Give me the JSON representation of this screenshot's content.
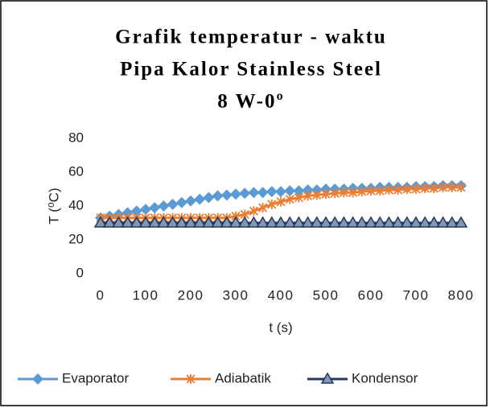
{
  "chart_data": {
    "type": "line",
    "title": [
      "Grafik temperatur - waktu",
      "Pipa Kalor Stainless Steel",
      "8 W-0º"
    ],
    "x_label": "t (s)",
    "y_label": "T (⁰C)",
    "x": [
      0,
      20,
      40,
      60,
      80,
      100,
      120,
      140,
      160,
      180,
      200,
      220,
      240,
      260,
      280,
      300,
      320,
      340,
      360,
      380,
      400,
      420,
      440,
      460,
      480,
      500,
      520,
      540,
      560,
      580,
      600,
      620,
      640,
      660,
      680,
      700,
      720,
      740,
      760,
      780,
      800
    ],
    "series": [
      {
        "name": "Evaporator",
        "color": "#5b9bd5",
        "marker": "diamond",
        "values": [
          33,
          34,
          35,
          36,
          37,
          38,
          39,
          40,
          41,
          42,
          43,
          44,
          45,
          46,
          46.5,
          47,
          47.5,
          48,
          48,
          48.5,
          48.5,
          49,
          49,
          49.5,
          49.5,
          50,
          50,
          50,
          50.5,
          50.5,
          50.5,
          51,
          51,
          51,
          51,
          51.5,
          51.5,
          51.5,
          52,
          52,
          52
        ]
      },
      {
        "name": "Adiabatik",
        "color": "#ed7d31",
        "marker": "star",
        "values": [
          33,
          33,
          33,
          33,
          33,
          33,
          33,
          33,
          33,
          33,
          33,
          33,
          33,
          33,
          33,
          34,
          35,
          37,
          39,
          41,
          42.5,
          44,
          45,
          46,
          46.5,
          47,
          47.5,
          48,
          48,
          48.5,
          49,
          49,
          49.5,
          49.5,
          50,
          50,
          50.5,
          50.5,
          51,
          51,
          51
        ]
      },
      {
        "name": "Kondensor",
        "color": "#1f3864",
        "marker": "triangle",
        "values": [
          30,
          30,
          30,
          30,
          30,
          30,
          30,
          30,
          30,
          30,
          30,
          30,
          30,
          30,
          30,
          30,
          30,
          30,
          30,
          30,
          30,
          30,
          30,
          30,
          30,
          30,
          30,
          30,
          30,
          30,
          30,
          30,
          30,
          30,
          30,
          30,
          30,
          30,
          30,
          30,
          30
        ]
      }
    ],
    "xlim": [
      0,
      800
    ],
    "xticks": [
      0,
      100,
      200,
      300,
      400,
      500,
      600,
      700,
      800
    ],
    "ylim": [
      0,
      80
    ],
    "yticks": [
      0,
      20,
      40,
      60,
      80
    ],
    "grid": false,
    "legend": "bottom"
  }
}
